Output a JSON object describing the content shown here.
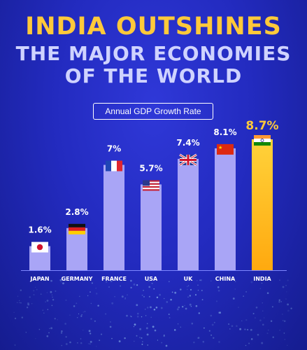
{
  "header": {
    "title_line1": "INDIA OUTSHINES",
    "title_line2": "THE MAJOR ECONOMIES",
    "title_line3": "OF THE WORLD",
    "subtitle": "Annual GDP Growth Rate"
  },
  "colors": {
    "bar": "#a9a5f6",
    "highlight_bar": "#ffa90f",
    "highlight_label": "#ffc93a",
    "label": "#ffffff"
  },
  "chart_data": {
    "type": "bar",
    "title": "Annual GDP Growth Rate",
    "categories": [
      "JAPAN",
      "GERMANY",
      "FRANCE",
      "USA",
      "UK",
      "CHINA",
      "INDIA"
    ],
    "values": [
      1.6,
      2.8,
      7,
      5.7,
      7.4,
      8.1,
      8.7
    ],
    "value_labels": [
      "1.6%",
      "2.8%",
      "7%",
      "5.7%",
      "7.4%",
      "8.1%",
      "8.7%"
    ],
    "flags": [
      "japan-flag",
      "germany-flag",
      "france-flag",
      "usa-flag",
      "uk-flag",
      "china-flag",
      "india-flag"
    ],
    "highlight": "INDIA",
    "ylim": [
      0,
      8.7
    ],
    "grid": false,
    "legend": "none"
  }
}
